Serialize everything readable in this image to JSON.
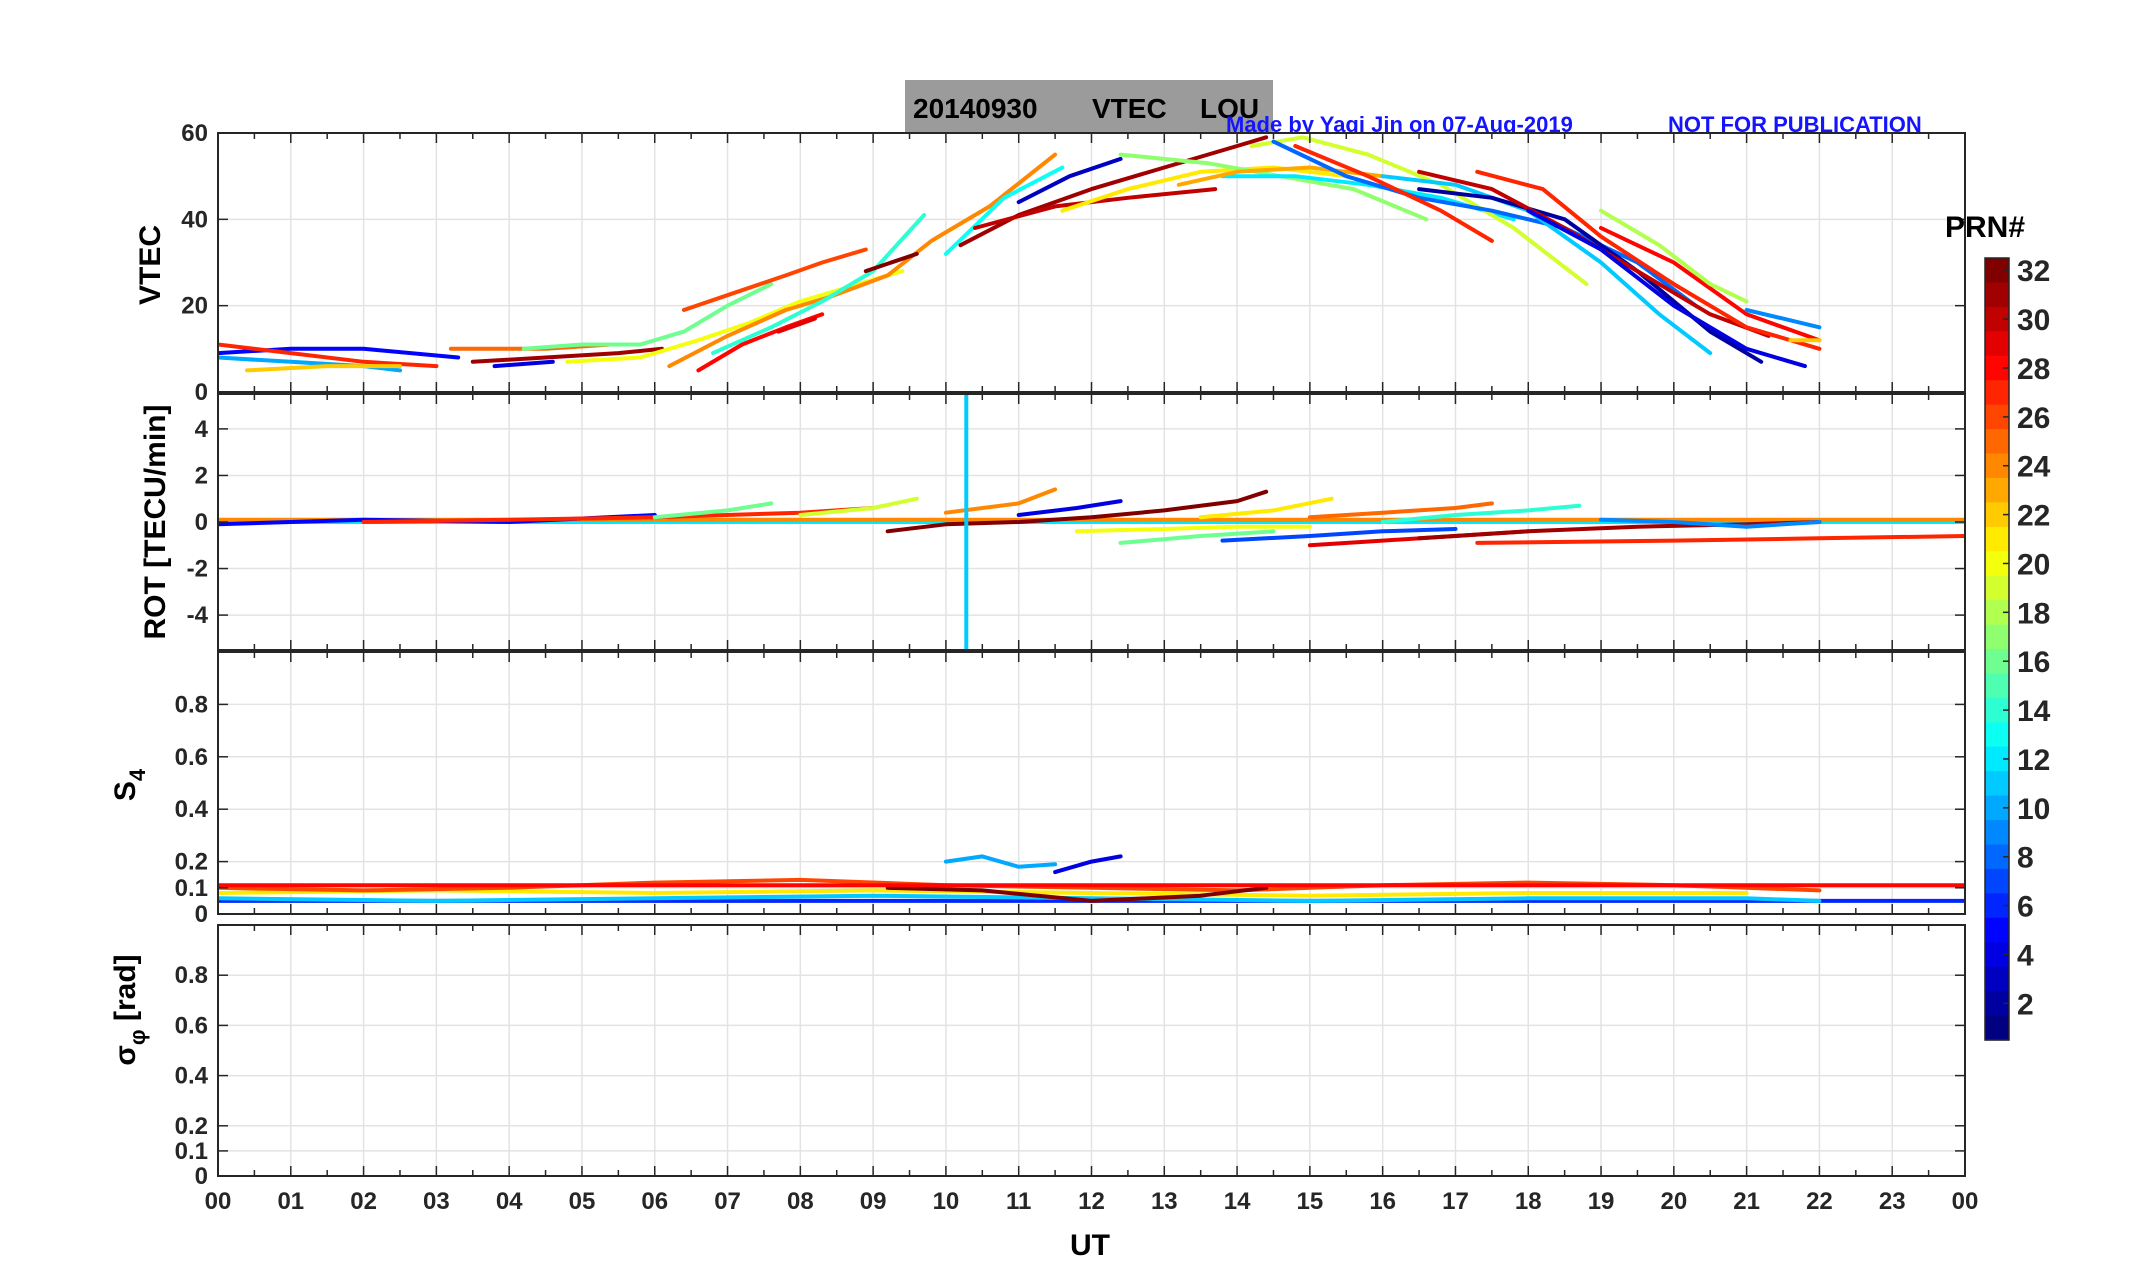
{
  "header": {
    "title_date": "20140930",
    "title_kind": "VTEC",
    "title_station": "LOU",
    "credit": "Made by Yaqi Jin on 07-Aug-2019",
    "warning": "NOT FOR PUBLICATION"
  },
  "colorbar": {
    "title": "PRN#",
    "min": 1,
    "max": 32,
    "ticks": [
      "2",
      "4",
      "6",
      "8",
      "10",
      "12",
      "14",
      "16",
      "18",
      "20",
      "22",
      "24",
      "26",
      "28",
      "30",
      "32"
    ]
  },
  "xaxis": {
    "label": "UT",
    "min": 0,
    "max": 24,
    "ticks": [
      "00",
      "01",
      "02",
      "03",
      "04",
      "05",
      "06",
      "07",
      "08",
      "09",
      "10",
      "11",
      "12",
      "13",
      "14",
      "15",
      "16",
      "17",
      "18",
      "19",
      "20",
      "21",
      "22",
      "23",
      "00"
    ]
  },
  "chart_data": [
    {
      "type": "line",
      "panel": "vtec",
      "ylabel": "VTEC",
      "ylim": [
        0,
        60
      ],
      "yticks": [
        0,
        20,
        40,
        60
      ],
      "grid": true,
      "series": [
        {
          "name": "PRN 10",
          "prn": 10,
          "x": [
            0.0,
            1.0,
            2.0,
            2.5
          ],
          "values": [
            8,
            7,
            6,
            5
          ]
        },
        {
          "name": "PRN 5",
          "prn": 5,
          "x": [
            0.0,
            1.0,
            2.0,
            3.3
          ],
          "values": [
            9,
            10,
            10,
            8
          ]
        },
        {
          "name": "PRN 27",
          "prn": 27,
          "x": [
            0.0,
            1.0,
            2.0,
            3.0
          ],
          "values": [
            11,
            9,
            7,
            6
          ]
        },
        {
          "name": "PRN 22",
          "prn": 22,
          "x": [
            0.4,
            1.5,
            2.5
          ],
          "values": [
            5,
            6,
            6
          ]
        },
        {
          "name": "PRN 25",
          "prn": 25,
          "x": [
            3.2,
            4.5,
            5.4
          ],
          "values": [
            10,
            10,
            11
          ]
        },
        {
          "name": "PRN 31",
          "prn": 31,
          "x": [
            3.5,
            4.5,
            5.5,
            6.1
          ],
          "values": [
            7,
            8,
            9,
            10
          ]
        },
        {
          "name": "PRN 4",
          "prn": 4,
          "x": [
            3.8,
            4.6
          ],
          "values": [
            6,
            7
          ]
        },
        {
          "name": "PRN 16",
          "prn": 16,
          "x": [
            4.2,
            5.0,
            5.8,
            6.4,
            7.0,
            7.6
          ],
          "values": [
            10,
            11,
            11,
            14,
            20,
            25
          ]
        },
        {
          "name": "PRN 20",
          "prn": 20,
          "x": [
            4.8,
            5.8,
            6.6,
            7.3,
            8.0,
            8.6,
            9.4
          ],
          "values": [
            7,
            8,
            12,
            16,
            21,
            24,
            28
          ]
        },
        {
          "name": "PRN 24",
          "prn": 24,
          "x": [
            6.2,
            7.0,
            7.8,
            8.4,
            9.2,
            9.8,
            10.6,
            11.5
          ],
          "values": [
            6,
            13,
            19,
            22,
            27,
            35,
            43,
            55
          ]
        },
        {
          "name": "PRN 28",
          "prn": 28,
          "x": [
            6.6,
            7.2,
            7.8,
            8.3
          ],
          "values": [
            5,
            11,
            15,
            18
          ]
        },
        {
          "name": "PRN 26",
          "prn": 26,
          "x": [
            6.4,
            7.1,
            7.8,
            8.3,
            8.9
          ],
          "values": [
            19,
            23,
            27,
            30,
            33
          ]
        },
        {
          "name": "PRN 14",
          "prn": 14,
          "x": [
            6.8,
            7.6,
            8.3,
            9.0,
            9.7
          ],
          "values": [
            9,
            15,
            21,
            28,
            41
          ]
        },
        {
          "name": "PRN 29",
          "prn": 29,
          "x": [
            7.7,
            8.2
          ],
          "values": [
            14,
            17
          ]
        },
        {
          "name": "PRN 32",
          "prn": 32,
          "x": [
            8.9,
            9.6
          ],
          "values": [
            28,
            32
          ]
        },
        {
          "name": "PRN 13",
          "prn": 13,
          "x": [
            10.0,
            10.8,
            11.6
          ],
          "values": [
            32,
            45,
            52
          ]
        },
        {
          "name": "PRN 3",
          "prn": 3,
          "x": [
            11.0,
            11.7,
            12.4
          ],
          "values": [
            44,
            50,
            54
          ]
        },
        {
          "name": "PRN 31b",
          "prn": 31,
          "x": [
            10.2,
            11.0,
            12.0,
            13.0,
            14.0,
            14.4
          ],
          "values": [
            34,
            41,
            47,
            52,
            57,
            59
          ]
        },
        {
          "name": "PRN 30",
          "prn": 30,
          "x": [
            10.4,
            11.5,
            12.5,
            13.7
          ],
          "values": [
            38,
            43,
            45,
            47
          ]
        },
        {
          "name": "PRN 21",
          "prn": 21,
          "x": [
            11.6,
            12.5,
            13.5,
            14.5,
            15.5
          ],
          "values": [
            42,
            47,
            51,
            52,
            50
          ]
        },
        {
          "name": "PRN 17",
          "prn": 17,
          "x": [
            12.4,
            13.6,
            14.6,
            15.6,
            16.6
          ],
          "values": [
            55,
            53,
            50,
            47,
            40
          ]
        },
        {
          "name": "PRN 12",
          "prn": 12,
          "x": [
            13.8,
            14.8,
            15.8,
            16.8,
            17.8
          ],
          "values": [
            50,
            50,
            48,
            45,
            40
          ]
        },
        {
          "name": "PRN 23",
          "prn": 23,
          "x": [
            13.2,
            14.0,
            15.0,
            16.0
          ],
          "values": [
            48,
            51,
            52,
            50
          ]
        },
        {
          "name": "PRN 19",
          "prn": 19,
          "x": [
            14.2,
            14.9,
            15.8,
            16.8,
            17.8,
            18.8
          ],
          "values": [
            57,
            59,
            55,
            48,
            38,
            25
          ]
        },
        {
          "name": "PRN 8",
          "prn": 8,
          "x": [
            14.5,
            15.5,
            16.5,
            17.5,
            18.5,
            19.5,
            20.3
          ],
          "values": [
            58,
            50,
            45,
            42,
            38,
            30,
            20
          ]
        },
        {
          "name": "PRN 27b",
          "prn": 27,
          "x": [
            14.8,
            15.8,
            16.8,
            17.5
          ],
          "values": [
            57,
            50,
            42,
            35
          ]
        },
        {
          "name": "PRN 11",
          "prn": 11,
          "x": [
            16.0,
            17.0,
            18.0,
            19.0,
            19.8,
            20.5
          ],
          "values": [
            50,
            48,
            42,
            30,
            18,
            9
          ]
        },
        {
          "name": "PRN 2",
          "prn": 2,
          "x": [
            16.5,
            17.5,
            18.5,
            19.5,
            20.5,
            21.2
          ],
          "values": [
            47,
            45,
            40,
            28,
            14,
            7
          ]
        },
        {
          "name": "PRN 30b",
          "prn": 30,
          "x": [
            16.5,
            17.5,
            18.5,
            19.5,
            20.5,
            21.3
          ],
          "values": [
            51,
            47,
            38,
            28,
            18,
            13
          ]
        },
        {
          "name": "PRN 27c",
          "prn": 27,
          "x": [
            17.3,
            18.2,
            19.0,
            20.0,
            21.0,
            22.0
          ],
          "values": [
            51,
            47,
            36,
            25,
            15,
            10
          ]
        },
        {
          "name": "PRN 4b",
          "prn": 4,
          "x": [
            18.0,
            19.0,
            20.0,
            21.0,
            21.8
          ],
          "values": [
            42,
            33,
            20,
            10,
            6
          ]
        },
        {
          "name": "PRN 28b",
          "prn": 28,
          "x": [
            19.0,
            20.0,
            21.0,
            22.0
          ],
          "values": [
            38,
            30,
            18,
            12
          ]
        },
        {
          "name": "PRN 18",
          "prn": 18,
          "x": [
            19.0,
            19.8,
            20.5,
            21.0
          ],
          "values": [
            42,
            34,
            25,
            21
          ]
        },
        {
          "name": "PRN 9",
          "prn": 9,
          "x": [
            21.0,
            21.5,
            22.0
          ],
          "values": [
            19,
            17,
            15
          ]
        },
        {
          "name": "PRN 22b",
          "prn": 22,
          "x": [
            21.6,
            22.0
          ],
          "values": [
            12,
            12
          ]
        }
      ]
    },
    {
      "type": "line",
      "panel": "rot",
      "ylabel": "ROT [TECU/min]",
      "ylim": [
        -5.5,
        5.5
      ],
      "yticks": [
        -4,
        -2,
        0,
        2,
        4
      ],
      "grid": true,
      "series": [
        {
          "name": "PRN 12 ROT",
          "prn": 12,
          "x": [
            0.0,
            24.0
          ],
          "values": [
            0.0,
            0.0
          ]
        },
        {
          "name": "PRN 24 ROT",
          "prn": 24,
          "x": [
            0.0,
            24.0
          ],
          "values": [
            0.1,
            0.1
          ]
        },
        {
          "name": "PRN 5 ROT",
          "prn": 5,
          "x": [
            0.0,
            2.0,
            4.0,
            6.0
          ],
          "values": [
            -0.1,
            0.1,
            0.0,
            0.3
          ]
        },
        {
          "name": "PRN 27 ROT",
          "prn": 27,
          "x": [
            2.0,
            4.0,
            6.0,
            8.0,
            9.0
          ],
          "values": [
            0.0,
            0.1,
            0.2,
            0.4,
            0.6
          ]
        },
        {
          "name": "PRN 16 ROT",
          "prn": 16,
          "x": [
            6.0,
            7.0,
            7.6
          ],
          "values": [
            0.2,
            0.5,
            0.8
          ]
        },
        {
          "name": "PRN 19 ROT",
          "prn": 19,
          "x": [
            8.0,
            9.0,
            9.6
          ],
          "values": [
            0.3,
            0.6,
            1.0
          ]
        },
        {
          "name": "PRN 24b ROT",
          "prn": 24,
          "x": [
            10.0,
            11.0,
            11.5
          ],
          "values": [
            0.4,
            0.8,
            1.4
          ]
        },
        {
          "name": "PRN 4 ROT",
          "prn": 4,
          "x": [
            11.0,
            11.8,
            12.4
          ],
          "values": [
            0.3,
            0.6,
            0.9
          ]
        },
        {
          "name": "PRN 32 ROT",
          "prn": 32,
          "x": [
            9.2,
            10.0,
            11.0,
            12.0,
            13.0,
            14.0,
            14.4
          ],
          "values": [
            -0.4,
            -0.1,
            0.0,
            0.2,
            0.5,
            0.9,
            1.3
          ]
        },
        {
          "name": "PRN 11 ROT spike",
          "prn": 11,
          "x": [
            10.28,
            10.28
          ],
          "values": [
            5.5,
            -5.5
          ]
        },
        {
          "name": "PRN 21 ROT",
          "prn": 21,
          "x": [
            13.5,
            14.5,
            15.3
          ],
          "values": [
            0.2,
            0.5,
            1.0
          ]
        },
        {
          "name": "PRN 20 ROT",
          "prn": 20,
          "x": [
            11.8,
            13.0,
            14.0,
            15.0
          ],
          "values": [
            -0.4,
            -0.3,
            -0.2,
            -0.2
          ]
        },
        {
          "name": "PRN 16b ROT",
          "prn": 16,
          "x": [
            12.4,
            13.5,
            14.5
          ],
          "values": [
            -0.9,
            -0.6,
            -0.4
          ]
        },
        {
          "name": "PRN 7 ROT",
          "prn": 7,
          "x": [
            13.8,
            15.0,
            16.0,
            17.0
          ],
          "values": [
            -0.8,
            -0.6,
            -0.4,
            -0.3
          ]
        },
        {
          "name": "PRN 25 ROT",
          "prn": 25,
          "x": [
            15.0,
            16.0,
            17.0,
            17.5
          ],
          "values": [
            0.2,
            0.4,
            0.6,
            0.8
          ]
        },
        {
          "name": "PRN 14 ROT",
          "prn": 14,
          "x": [
            16.0,
            17.0,
            18.0,
            18.7
          ],
          "values": [
            0.0,
            0.3,
            0.5,
            0.7
          ]
        },
        {
          "name": "PRN 29 ROT",
          "prn": 29,
          "x": [
            15.0,
            16.0,
            17.0,
            18.0
          ],
          "values": [
            -1.0,
            -0.8,
            -0.6,
            -0.4
          ]
        },
        {
          "name": "PRN 31 ROT",
          "prn": 31,
          "x": [
            16.5,
            18.0,
            19.5,
            21.0,
            22.0
          ],
          "values": [
            -0.7,
            -0.4,
            -0.2,
            -0.1,
            0.0
          ]
        },
        {
          "name": "PRN 27b ROT",
          "prn": 27,
          "x": [
            17.3,
            20.0,
            22.0,
            24.0
          ],
          "values": [
            -0.9,
            -0.8,
            -0.7,
            -0.6
          ]
        },
        {
          "name": "PRN 9 ROT",
          "prn": 9,
          "x": [
            19.0,
            20.0,
            21.0,
            22.0
          ],
          "values": [
            0.1,
            0.0,
            -0.2,
            0.0
          ]
        }
      ]
    },
    {
      "type": "line",
      "panel": "s4",
      "ylabel": "S4",
      "ylim": [
        0,
        1.0
      ],
      "yticks": [
        0,
        0.1,
        0.2,
        0.4,
        0.6,
        0.8
      ],
      "grid": true,
      "series": [
        {
          "name": "PRN 6 S4",
          "prn": 6,
          "x": [
            0.0,
            24.0
          ],
          "values": [
            0.05,
            0.05
          ]
        },
        {
          "name": "PRN 11 S4",
          "prn": 11,
          "x": [
            0.0,
            3.0,
            6.0,
            9.0,
            12.0,
            15.0,
            18.0,
            21.0,
            22.0
          ],
          "values": [
            0.06,
            0.05,
            0.06,
            0.07,
            0.06,
            0.05,
            0.06,
            0.06,
            0.05
          ]
        },
        {
          "name": "PRN 21 S4",
          "prn": 21,
          "x": [
            0.0,
            3.0,
            6.0,
            9.0,
            12.0,
            15.0,
            18.0,
            21.0
          ],
          "values": [
            0.08,
            0.09,
            0.08,
            0.09,
            0.08,
            0.07,
            0.08,
            0.08
          ]
        },
        {
          "name": "PRN 26 S4",
          "prn": 26,
          "x": [
            0.0,
            2.0,
            4.0,
            6.0,
            8.0,
            10.0,
            12.0,
            14.0,
            16.0,
            18.0,
            20.0,
            22.0
          ],
          "values": [
            0.1,
            0.09,
            0.1,
            0.12,
            0.13,
            0.11,
            0.1,
            0.09,
            0.11,
            0.12,
            0.11,
            0.09
          ]
        },
        {
          "name": "PRN 10 S4",
          "prn": 10,
          "x": [
            10.0,
            10.5,
            11.0,
            11.5
          ],
          "values": [
            0.2,
            0.22,
            0.18,
            0.19
          ]
        },
        {
          "name": "PRN 4 S4",
          "prn": 4,
          "x": [
            11.5,
            12.0,
            12.4
          ],
          "values": [
            0.16,
            0.2,
            0.22
          ]
        },
        {
          "name": "PRN 32 S4",
          "prn": 32,
          "x": [
            9.2,
            10.5,
            12.0,
            13.5,
            14.4
          ],
          "values": [
            0.1,
            0.09,
            0.05,
            0.07,
            0.1
          ]
        },
        {
          "name": "PRN 28 S4",
          "prn": 28,
          "x": [
            0.0,
            24.0
          ],
          "values": [
            0.11,
            0.11
          ]
        }
      ]
    },
    {
      "type": "line",
      "panel": "sigma_phi",
      "ylabel": "σ_φ [rad]",
      "ylim": [
        0,
        1.0
      ],
      "yticks": [
        0,
        0.1,
        0.2,
        0.4,
        0.6,
        0.8
      ],
      "grid": true,
      "series": []
    }
  ]
}
